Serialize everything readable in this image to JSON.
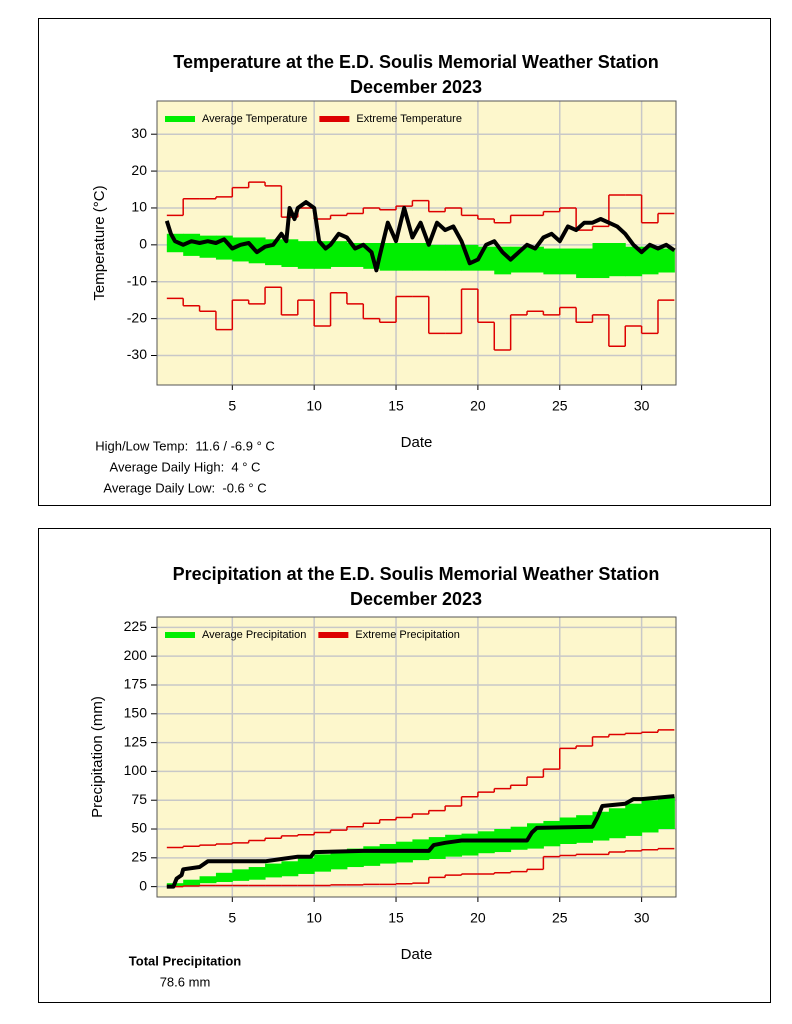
{
  "chart_data": [
    {
      "type": "line",
      "title": "Temperature at the E.D. Soulis Memorial Weather Station",
      "subtitle": "December 2023",
      "x_label": "Date",
      "y_label": "Temperature (°C)",
      "x": [
        1,
        2,
        3,
        4,
        5,
        6,
        7,
        8,
        9,
        10,
        11,
        12,
        13,
        14,
        15,
        16,
        17,
        18,
        19,
        20,
        21,
        22,
        23,
        24,
        25,
        26,
        27,
        28,
        29,
        30,
        31
      ],
      "xlim": [
        0.4,
        32.1
      ],
      "ylim": [
        -38,
        39
      ],
      "xticks": [
        5,
        10,
        15,
        20,
        25,
        30
      ],
      "yticks": [
        -30,
        -20,
        -10,
        0,
        10,
        20,
        30
      ],
      "grid": true,
      "legend": "upper left",
      "series": [
        {
          "name": "Average Temperature",
          "color": "#00ee00",
          "style": "band",
          "high": [
            3,
            3,
            2.5,
            2.5,
            2,
            2,
            1.5,
            1.5,
            1,
            1,
            1,
            0.5,
            0.5,
            0.5,
            0.5,
            0.5,
            0,
            0,
            0,
            -0.5,
            -0.5,
            -0.5,
            -0.5,
            -1,
            -1,
            -1,
            0.5,
            0.5,
            -0.5,
            -0.5,
            -1
          ],
          "low": [
            -2,
            -3,
            -3.5,
            -4,
            -4.5,
            -5,
            -5.5,
            -6,
            -6.5,
            -6.5,
            -6,
            -6,
            -6.5,
            -7,
            -7,
            -7,
            -7,
            -7,
            -7,
            -7,
            -8,
            -7.5,
            -7.5,
            -8,
            -8,
            -9,
            -9,
            -8.5,
            -8.5,
            -8,
            -7.5
          ]
        },
        {
          "name": "Extreme Temperature",
          "color": "#dd0000",
          "style": "steps",
          "high": [
            8,
            12.5,
            12.5,
            13,
            15.5,
            17,
            16,
            7.5,
            10,
            7,
            8,
            8.5,
            10,
            9.5,
            10.5,
            12,
            9,
            10,
            8,
            7,
            6,
            8,
            8,
            9,
            10,
            4,
            5,
            13.5,
            13.5,
            6,
            8.5
          ],
          "low": [
            -14.5,
            -16.5,
            -18,
            -23,
            -15,
            -16,
            -11.5,
            -19,
            -15,
            -22,
            -13,
            -16,
            -20,
            -21,
            -14,
            -14,
            -24,
            -24,
            -12,
            -21,
            -28.5,
            -19,
            -18,
            -19,
            -17,
            -21,
            -19,
            -27.5,
            -22,
            -24,
            -15
          ]
        },
        {
          "color": "#000000",
          "style": "line",
          "x": [
            1,
            1.25,
            1.5,
            2,
            2.5,
            3,
            3.5,
            4,
            4.5,
            5,
            5.5,
            6,
            6.5,
            7,
            7.5,
            8,
            8.3,
            8.5,
            8.8,
            9,
            9.5,
            10,
            10.3,
            10.7,
            11,
            11.5,
            12,
            12.5,
            13,
            13.5,
            13.8,
            14,
            14.5,
            15,
            15.5,
            16,
            16.5,
            17,
            17.5,
            18,
            18.5,
            19,
            19.5,
            20,
            20.5,
            21,
            21.5,
            22,
            22.5,
            23,
            23.5,
            24,
            24.5,
            25,
            25.5,
            26,
            26.5,
            27,
            27.5,
            28,
            28.5,
            29,
            29.5,
            30,
            30.5,
            31,
            31.5,
            32
          ],
          "values": [
            6.5,
            3,
            1,
            0,
            1,
            0.5,
            1,
            0.5,
            1.5,
            -1,
            0,
            0.5,
            -2,
            -0.5,
            0,
            3,
            1,
            10,
            7,
            10,
            11.6,
            10,
            1,
            -1,
            0,
            3,
            2,
            -1,
            0,
            -2,
            -6.9,
            -3,
            6,
            1,
            10,
            2,
            6,
            0,
            6,
            4,
            5,
            1,
            -5,
            -4,
            0,
            1,
            -2,
            -4,
            -2,
            0,
            -1,
            2,
            3,
            1,
            5,
            4,
            6,
            6,
            7,
            6,
            5,
            3,
            0,
            -2,
            0,
            -1,
            0,
            -1.5
          ]
        }
      ],
      "notes": [
        {
          "text": "High/Low Temp:  11.6 / -6.9 ° C"
        },
        {
          "text": "Average Daily High:  4 ° C"
        },
        {
          "text": "Average Daily Low:  -0.6 ° C"
        }
      ]
    },
    {
      "type": "line",
      "title": "Precipitation at the E.D. Soulis Memorial Weather Station",
      "subtitle": "December 2023",
      "x_label": "Date",
      "y_label": "Precipitation (mm)",
      "x": [
        1,
        2,
        3,
        4,
        5,
        6,
        7,
        8,
        9,
        10,
        11,
        12,
        13,
        14,
        15,
        16,
        17,
        18,
        19,
        20,
        21,
        22,
        23,
        24,
        25,
        26,
        27,
        28,
        29,
        30,
        31
      ],
      "xlim": [
        0.4,
        32.1
      ],
      "ylim": [
        -9,
        234
      ],
      "xticks": [
        5,
        10,
        15,
        20,
        25,
        30
      ],
      "yticks": [
        0,
        25,
        50,
        75,
        100,
        125,
        150,
        175,
        200,
        225
      ],
      "grid": true,
      "legend": "upper left",
      "series": [
        {
          "name": "Average Precipitation",
          "color": "#00ee00",
          "style": "band",
          "high": [
            3,
            6,
            9,
            12,
            15,
            17,
            20,
            22,
            25,
            28,
            31,
            33,
            35,
            37,
            39,
            41,
            43,
            45,
            46,
            48,
            50,
            52,
            55,
            57,
            60,
            62,
            65,
            68,
            72,
            75,
            78
          ],
          "low": [
            0,
            1,
            3,
            4,
            5,
            6,
            8,
            9,
            11,
            13,
            15,
            17,
            18,
            20,
            21,
            23,
            24,
            26,
            27,
            29,
            30,
            32,
            33,
            35,
            37,
            38,
            40,
            42,
            44,
            47,
            50
          ]
        },
        {
          "name": "Extreme Precipitation",
          "color": "#dd0000",
          "style": "steps",
          "high": [
            34,
            35,
            36,
            37,
            38,
            40,
            42,
            44,
            45,
            47,
            49,
            52,
            55,
            58,
            60,
            63,
            66,
            70,
            78,
            82,
            85,
            88,
            95,
            102,
            120,
            122,
            130,
            132,
            133,
            134,
            136
          ],
          "low": [
            0,
            0.5,
            1,
            1,
            1,
            1,
            1,
            1,
            1,
            1,
            1.5,
            1.5,
            2,
            2,
            2.5,
            3,
            8,
            10,
            11,
            11,
            12,
            13,
            15,
            26,
            27,
            28,
            28,
            30,
            31,
            32,
            33
          ]
        },
        {
          "color": "#000000",
          "style": "line",
          "x": [
            1,
            1.4,
            1.6,
            1.9,
            2,
            3,
            3.5,
            5,
            7,
            8,
            9,
            9.8,
            10,
            13,
            15,
            15.5,
            17,
            17.3,
            18,
            18.5,
            19,
            23,
            23.3,
            23.6,
            27,
            27.3,
            27.6,
            29,
            29.5,
            30,
            32
          ],
          "values": [
            0,
            0,
            7,
            10,
            15,
            17,
            22,
            22,
            22,
            24,
            26,
            26,
            30,
            31,
            31,
            31,
            31,
            36,
            38,
            39,
            40,
            40,
            47,
            51,
            52,
            60,
            70,
            72,
            76,
            76,
            78.6
          ]
        }
      ],
      "notes": [
        {
          "text": "Total Precipitation",
          "bold": true
        },
        {
          "text": "78.6 mm"
        }
      ]
    }
  ]
}
